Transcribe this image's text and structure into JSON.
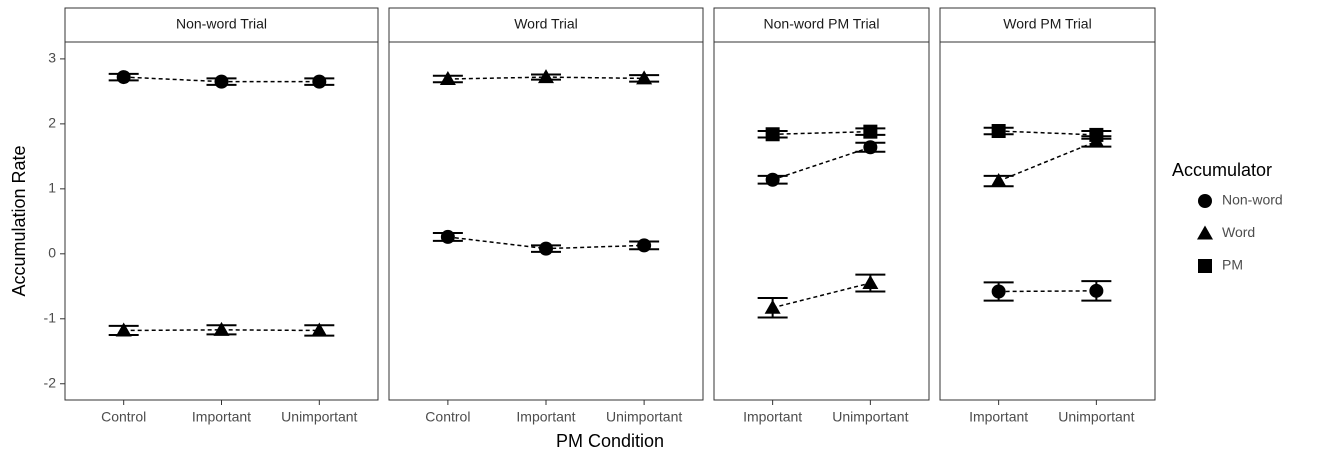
{
  "x_label": "PM Condition",
  "y_label": "Accumulation Rate",
  "ylim": [
    -2.25,
    3.26
  ],
  "yticks": [
    -2,
    -1,
    0,
    1,
    2,
    3
  ],
  "legend": {
    "title": "Accumulator",
    "entries": [
      {
        "name": "Non-word",
        "marker": "circle"
      },
      {
        "name": "Word",
        "marker": "triangle"
      },
      {
        "name": "PM",
        "marker": "square"
      }
    ]
  },
  "chart_data": [
    {
      "type": "line",
      "title": "Non-word Trial",
      "categories": [
        "Control",
        "Important",
        "Unimportant"
      ],
      "series": [
        {
          "name": "Non-word",
          "marker": "circle",
          "values": [
            2.72,
            2.65,
            2.65
          ],
          "errors": [
            0.05,
            0.05,
            0.05
          ]
        },
        {
          "name": "Word",
          "marker": "triangle",
          "values": [
            -1.18,
            -1.17,
            -1.18
          ],
          "errors": [
            0.07,
            0.07,
            0.08
          ]
        }
      ]
    },
    {
      "type": "line",
      "title": "Word Trial",
      "categories": [
        "Control",
        "Important",
        "Unimportant"
      ],
      "series": [
        {
          "name": "Non-word",
          "marker": "circle",
          "values": [
            0.26,
            0.08,
            0.13
          ],
          "errors": [
            0.06,
            0.05,
            0.06
          ]
        },
        {
          "name": "Word",
          "marker": "triangle",
          "values": [
            2.69,
            2.72,
            2.7
          ],
          "errors": [
            0.05,
            0.04,
            0.05
          ]
        }
      ]
    },
    {
      "type": "line",
      "title": "Non-word PM Trial",
      "categories": [
        "Important",
        "Unimportant"
      ],
      "series": [
        {
          "name": "Non-word",
          "marker": "circle",
          "values": [
            1.14,
            1.64
          ],
          "errors": [
            0.06,
            0.07
          ]
        },
        {
          "name": "Word",
          "marker": "triangle",
          "values": [
            -0.83,
            -0.45
          ],
          "errors": [
            0.15,
            0.13
          ]
        },
        {
          "name": "PM",
          "marker": "square",
          "values": [
            1.84,
            1.88
          ],
          "errors": [
            0.05,
            0.05
          ]
        }
      ]
    },
    {
      "type": "line",
      "title": "Word PM Trial",
      "categories": [
        "Important",
        "Unimportant"
      ],
      "series": [
        {
          "name": "Non-word",
          "marker": "circle",
          "values": [
            -0.58,
            -0.57
          ],
          "errors": [
            0.14,
            0.15
          ]
        },
        {
          "name": "Word",
          "marker": "triangle",
          "values": [
            1.12,
            1.73
          ],
          "errors": [
            0.08,
            0.08
          ]
        },
        {
          "name": "PM",
          "marker": "square",
          "values": [
            1.89,
            1.83
          ],
          "errors": [
            0.05,
            0.06
          ]
        }
      ]
    }
  ]
}
